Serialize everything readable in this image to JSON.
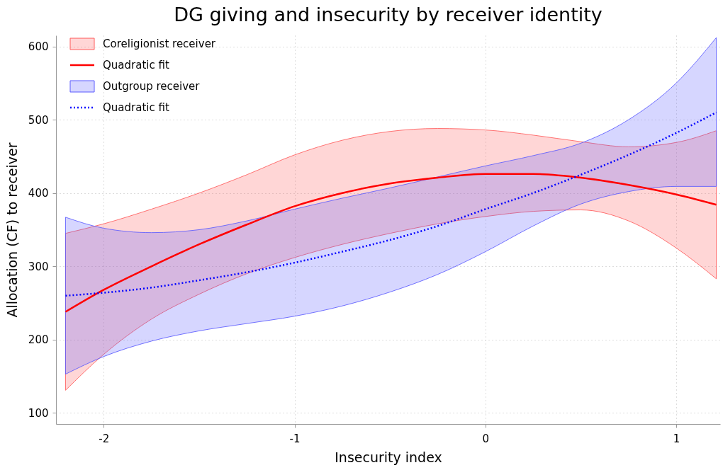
{
  "chart_data": {
    "type": "line",
    "title": "DG giving and insecurity by receiver identity",
    "xlabel": "Insecurity index",
    "ylabel": "Allocation (CF) to receiver",
    "x": [
      -2.2,
      -2,
      -1.75,
      -1.5,
      -1.25,
      -1,
      -0.75,
      -0.5,
      -0.25,
      0,
      0.25,
      0.5,
      0.75,
      1,
      1.21
    ],
    "xlim": [
      -2.25,
      1.23
    ],
    "xticks": [
      -2,
      -1,
      0,
      1
    ],
    "ylim": [
      85,
      615
    ],
    "yticks": [
      100,
      200,
      300,
      400,
      500,
      600
    ],
    "grid": true,
    "legend": "top left",
    "series": [
      {
        "name": "Coreligionist receiver",
        "type": "area",
        "color": "#ff5a5a",
        "values": [
          null,
          null,
          null,
          null,
          null,
          null,
          null,
          null,
          null,
          null,
          null,
          null,
          null,
          null,
          null
        ]
      },
      {
        "name": "Quadratic fit",
        "type": "line",
        "color": "#ff0000",
        "line_style": "solid",
        "values": [
          238,
          268,
          300,
          330,
          357,
          382,
          400,
          413,
          421,
          426,
          426,
          421,
          411,
          398,
          384
        ],
        "lower": [
          131,
          180,
          228,
          262,
          290,
          312,
          330,
          345,
          358,
          368,
          375,
          377,
          362,
          325,
          283
        ],
        "upper": [
          345,
          358,
          378,
          400,
          425,
          452,
          472,
          484,
          488,
          486,
          479,
          470,
          463,
          469,
          485
        ]
      },
      {
        "name": "Outgroup receiver",
        "type": "area",
        "color": "#5a5aff",
        "values": [
          null,
          null,
          null,
          null,
          null,
          null,
          null,
          null,
          null,
          null,
          null,
          null,
          null,
          null,
          null
        ]
      },
      {
        "name": "Quadratic fit",
        "type": "line",
        "color": "#0000ff",
        "line_style": "dotted",
        "values": [
          260,
          264,
          271,
          281,
          292,
          305,
          320,
          336,
          355,
          378,
          400,
          425,
          452,
          482,
          510
        ],
        "lower": [
          153,
          177,
          198,
          212,
          222,
          232,
          246,
          265,
          289,
          320,
          355,
          385,
          402,
          409,
          409
        ],
        "upper": [
          367,
          352,
          346,
          350,
          362,
          378,
          393,
          407,
          422,
          437,
          451,
          468,
          500,
          550,
          612
        ]
      }
    ]
  }
}
